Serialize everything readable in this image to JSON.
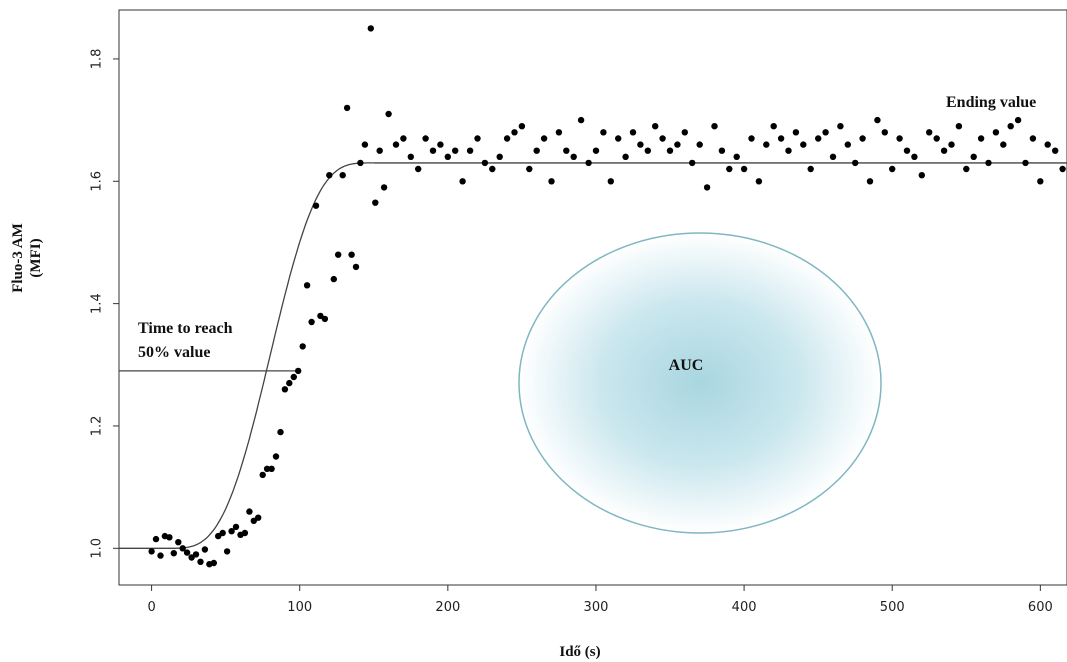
{
  "chart_data": {
    "type": "scatter",
    "xlabel": "Idő (s)",
    "ylabel_line1": "Fluo-3 AM",
    "ylabel_line2": "(MFI)",
    "xlim": [
      -22,
      618
    ],
    "ylim": [
      0.94,
      1.88
    ],
    "x_ticks": [
      0,
      100,
      200,
      300,
      400,
      500,
      600
    ],
    "y_ticks": [
      1.0,
      1.2,
      1.4,
      1.6,
      1.8
    ],
    "grid": false,
    "annotations": {
      "time_to_reach_line1": "Time to reach",
      "time_to_reach_line2": "50% value",
      "ending_value": "Ending value",
      "auc": "AUC"
    },
    "fit_curve": {
      "baseline": 1.0,
      "plateau": 1.63,
      "midpoint_x": 100,
      "half_value": 1.29
    },
    "series": [
      {
        "x": [
          0,
          3,
          6,
          9,
          12,
          15,
          18,
          21,
          24,
          27,
          30,
          33,
          36,
          39,
          42,
          45,
          48,
          51,
          54,
          57,
          60,
          63,
          66,
          69,
          72,
          75,
          78,
          81,
          84,
          87,
          90,
          93,
          96,
          99,
          102,
          105,
          108,
          111,
          114,
          117,
          120,
          123,
          126,
          129,
          132,
          135,
          138,
          141,
          144,
          148,
          151,
          154,
          157,
          160,
          165,
          170,
          175,
          180,
          185,
          190,
          195,
          200,
          205,
          210,
          215,
          220,
          225,
          230,
          235,
          240,
          245,
          250,
          255,
          260,
          265,
          270,
          275,
          280,
          285,
          290,
          295,
          300,
          305,
          310,
          315,
          320,
          325,
          330,
          335,
          340,
          345,
          350,
          355,
          360,
          365,
          370,
          375,
          380,
          385,
          390,
          395,
          400,
          405,
          410,
          415,
          420,
          425,
          430,
          435,
          440,
          445,
          450,
          455,
          460,
          465,
          470,
          475,
          480,
          485,
          490,
          495,
          500,
          505,
          510,
          515,
          520,
          525,
          530,
          535,
          540,
          545,
          550,
          555,
          560,
          565,
          570,
          575,
          580,
          585,
          590,
          595,
          600,
          605,
          610,
          615
        ],
        "y": [
          0.995,
          1.015,
          0.988,
          1.02,
          1.018,
          0.992,
          1.01,
          1.0,
          0.993,
          0.985,
          0.99,
          0.978,
          0.998,
          0.974,
          0.976,
          1.02,
          1.025,
          0.995,
          1.028,
          1.035,
          1.022,
          1.025,
          1.06,
          1.045,
          1.05,
          1.12,
          1.13,
          1.13,
          1.15,
          1.19,
          1.26,
          1.27,
          1.28,
          1.29,
          1.33,
          1.43,
          1.37,
          1.56,
          1.38,
          1.375,
          1.61,
          1.44,
          1.48,
          1.61,
          1.72,
          1.48,
          1.46,
          1.63,
          1.66,
          1.85,
          1.565,
          1.65,
          1.59,
          1.71,
          1.66,
          1.67,
          1.64,
          1.62,
          1.67,
          1.65,
          1.66,
          1.64,
          1.65,
          1.6,
          1.65,
          1.67,
          1.63,
          1.62,
          1.64,
          1.67,
          1.68,
          1.69,
          1.62,
          1.65,
          1.67,
          1.6,
          1.68,
          1.65,
          1.64,
          1.7,
          1.63,
          1.65,
          1.68,
          1.6,
          1.67,
          1.64,
          1.68,
          1.66,
          1.65,
          1.69,
          1.67,
          1.65,
          1.66,
          1.68,
          1.63,
          1.66,
          1.59,
          1.69,
          1.65,
          1.62,
          1.64,
          1.62,
          1.67,
          1.6,
          1.66,
          1.69,
          1.67,
          1.65,
          1.68,
          1.66,
          1.62,
          1.67,
          1.68,
          1.64,
          1.69,
          1.66,
          1.63,
          1.67,
          1.6,
          1.7,
          1.68,
          1.62,
          1.67,
          1.65,
          1.64,
          1.61,
          1.68,
          1.67,
          1.65,
          1.66,
          1.69,
          1.62,
          1.64,
          1.67,
          1.63,
          1.68,
          1.66,
          1.69,
          1.7,
          1.63,
          1.67,
          1.6,
          1.66,
          1.65,
          1.62
        ]
      }
    ]
  }
}
